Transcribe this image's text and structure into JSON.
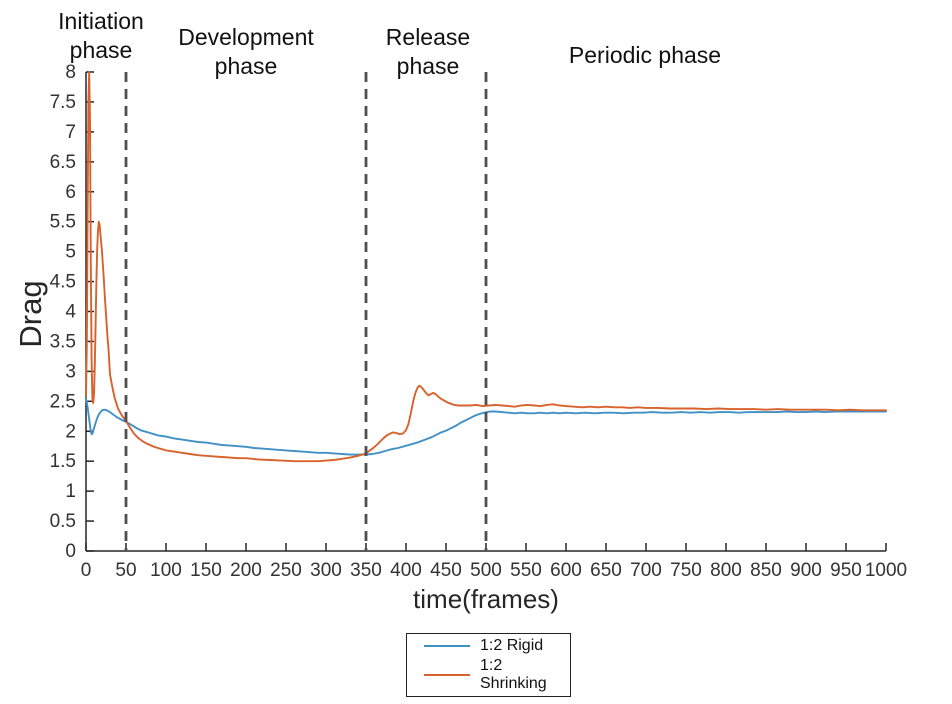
{
  "figure": {
    "annotations": [
      {
        "text": "Initiation phase"
      },
      {
        "text": "Development phase"
      },
      {
        "text": "Release phase"
      },
      {
        "text": "Periodic phase"
      }
    ]
  },
  "chart_data": {
    "type": "line",
    "title": "",
    "xlabel": "time(frames)",
    "ylabel": "Drag",
    "xlim": [
      0,
      1000
    ],
    "ylim": [
      0,
      8
    ],
    "x_ticks": [
      0,
      50,
      100,
      150,
      200,
      250,
      300,
      350,
      400,
      450,
      500,
      550,
      600,
      650,
      700,
      750,
      800,
      850,
      900,
      950,
      1000
    ],
    "y_ticks": [
      0,
      0.5,
      1,
      1.5,
      2,
      2.5,
      3,
      3.5,
      4,
      4.5,
      5,
      5.5,
      6,
      6.5,
      7,
      7.5,
      8
    ],
    "grid": false,
    "axis_color": "#262626",
    "tick_label_color": "#333333",
    "phase_boundaries_x": [
      50,
      350,
      500
    ],
    "boundary_color": "#4f4f4f",
    "legend": {
      "position": "below-plot",
      "entries": [
        {
          "label": "1:2 Rigid",
          "color": "#4191c7"
        },
        {
          "label": "1:2 Shrinking",
          "color": "#d8622d"
        }
      ]
    },
    "series": [
      {
        "name": "1:2 Rigid",
        "color": "#4191c7",
        "points": [
          [
            0,
            2.55
          ],
          [
            2,
            2.4
          ],
          [
            4,
            2.2
          ],
          [
            6,
            2.0
          ],
          [
            7,
            1.95
          ],
          [
            8,
            1.96
          ],
          [
            10,
            2.05
          ],
          [
            12,
            2.14
          ],
          [
            14,
            2.22
          ],
          [
            16,
            2.28
          ],
          [
            18,
            2.32
          ],
          [
            20,
            2.35
          ],
          [
            23,
            2.36
          ],
          [
            26,
            2.35
          ],
          [
            30,
            2.32
          ],
          [
            34,
            2.28
          ],
          [
            38,
            2.24
          ],
          [
            42,
            2.21
          ],
          [
            46,
            2.18
          ],
          [
            50,
            2.16
          ],
          [
            55,
            2.12
          ],
          [
            60,
            2.08
          ],
          [
            65,
            2.04
          ],
          [
            70,
            2.01
          ],
          [
            75,
            1.99
          ],
          [
            80,
            1.97
          ],
          [
            85,
            1.95
          ],
          [
            90,
            1.93
          ],
          [
            95,
            1.92
          ],
          [
            100,
            1.91
          ],
          [
            110,
            1.88
          ],
          [
            120,
            1.86
          ],
          [
            130,
            1.84
          ],
          [
            140,
            1.82
          ],
          [
            150,
            1.81
          ],
          [
            160,
            1.79
          ],
          [
            170,
            1.77
          ],
          [
            180,
            1.76
          ],
          [
            190,
            1.75
          ],
          [
            200,
            1.74
          ],
          [
            210,
            1.72
          ],
          [
            220,
            1.71
          ],
          [
            230,
            1.7
          ],
          [
            240,
            1.69
          ],
          [
            250,
            1.68
          ],
          [
            260,
            1.67
          ],
          [
            270,
            1.66
          ],
          [
            280,
            1.65
          ],
          [
            290,
            1.64
          ],
          [
            300,
            1.64
          ],
          [
            310,
            1.63
          ],
          [
            320,
            1.62
          ],
          [
            330,
            1.61
          ],
          [
            340,
            1.61
          ],
          [
            350,
            1.61
          ],
          [
            358,
            1.62
          ],
          [
            366,
            1.64
          ],
          [
            374,
            1.67
          ],
          [
            382,
            1.7
          ],
          [
            390,
            1.72
          ],
          [
            398,
            1.75
          ],
          [
            406,
            1.78
          ],
          [
            414,
            1.81
          ],
          [
            420,
            1.84
          ],
          [
            426,
            1.87
          ],
          [
            432,
            1.9
          ],
          [
            438,
            1.94
          ],
          [
            444,
            1.98
          ],
          [
            450,
            2.01
          ],
          [
            456,
            2.05
          ],
          [
            462,
            2.09
          ],
          [
            468,
            2.14
          ],
          [
            474,
            2.18
          ],
          [
            480,
            2.22
          ],
          [
            486,
            2.26
          ],
          [
            492,
            2.29
          ],
          [
            498,
            2.31
          ],
          [
            505,
            2.33
          ],
          [
            512,
            2.33
          ],
          [
            520,
            2.32
          ],
          [
            528,
            2.31
          ],
          [
            536,
            2.3
          ],
          [
            544,
            2.31
          ],
          [
            552,
            2.3
          ],
          [
            560,
            2.3
          ],
          [
            568,
            2.31
          ],
          [
            576,
            2.3
          ],
          [
            584,
            2.31
          ],
          [
            592,
            2.3
          ],
          [
            600,
            2.31
          ],
          [
            612,
            2.3
          ],
          [
            624,
            2.31
          ],
          [
            636,
            2.3
          ],
          [
            648,
            2.31
          ],
          [
            660,
            2.31
          ],
          [
            672,
            2.3
          ],
          [
            684,
            2.31
          ],
          [
            696,
            2.31
          ],
          [
            708,
            2.32
          ],
          [
            720,
            2.31
          ],
          [
            732,
            2.31
          ],
          [
            744,
            2.32
          ],
          [
            756,
            2.31
          ],
          [
            768,
            2.32
          ],
          [
            780,
            2.31
          ],
          [
            792,
            2.32
          ],
          [
            804,
            2.32
          ],
          [
            816,
            2.31
          ],
          [
            828,
            2.32
          ],
          [
            840,
            2.32
          ],
          [
            852,
            2.32
          ],
          [
            864,
            2.32
          ],
          [
            876,
            2.33
          ],
          [
            888,
            2.32
          ],
          [
            900,
            2.32
          ],
          [
            912,
            2.33
          ],
          [
            924,
            2.32
          ],
          [
            936,
            2.33
          ],
          [
            948,
            2.33
          ],
          [
            960,
            2.33
          ],
          [
            972,
            2.33
          ],
          [
            984,
            2.33
          ],
          [
            1000,
            2.33
          ]
        ]
      },
      {
        "name": "1:2 Shrinking",
        "color": "#d8622d",
        "points": [
          [
            0,
            2.6
          ],
          [
            1,
            3.4
          ],
          [
            2,
            5.6
          ],
          [
            3,
            7.5
          ],
          [
            4,
            8
          ],
          [
            5,
            7.2
          ],
          [
            6,
            4.8
          ],
          [
            7,
            3.2
          ],
          [
            8,
            2.55
          ],
          [
            9,
            2.47
          ],
          [
            10,
            2.62
          ],
          [
            11,
            3.1
          ],
          [
            12,
            3.8
          ],
          [
            13,
            4.5
          ],
          [
            14,
            5.05
          ],
          [
            15,
            5.35
          ],
          [
            16,
            5.5
          ],
          [
            17,
            5.45
          ],
          [
            18,
            5.3
          ],
          [
            20,
            5.0
          ],
          [
            22,
            4.6
          ],
          [
            24,
            4.15
          ],
          [
            26,
            3.75
          ],
          [
            27,
            3.55
          ],
          [
            28,
            3.4
          ],
          [
            30,
            2.95
          ],
          [
            33,
            2.73
          ],
          [
            36,
            2.55
          ],
          [
            40,
            2.38
          ],
          [
            45,
            2.26
          ],
          [
            50,
            2.17
          ],
          [
            55,
            2.06
          ],
          [
            60,
            1.96
          ],
          [
            65,
            1.89
          ],
          [
            70,
            1.84
          ],
          [
            75,
            1.8
          ],
          [
            80,
            1.77
          ],
          [
            85,
            1.74
          ],
          [
            90,
            1.72
          ],
          [
            95,
            1.7
          ],
          [
            100,
            1.68
          ],
          [
            110,
            1.66
          ],
          [
            120,
            1.64
          ],
          [
            130,
            1.62
          ],
          [
            140,
            1.6
          ],
          [
            150,
            1.59
          ],
          [
            160,
            1.58
          ],
          [
            170,
            1.57
          ],
          [
            180,
            1.56
          ],
          [
            190,
            1.55
          ],
          [
            200,
            1.55
          ],
          [
            215,
            1.53
          ],
          [
            230,
            1.52
          ],
          [
            245,
            1.51
          ],
          [
            260,
            1.5
          ],
          [
            275,
            1.5
          ],
          [
            290,
            1.5
          ],
          [
            300,
            1.51
          ],
          [
            310,
            1.52
          ],
          [
            320,
            1.54
          ],
          [
            330,
            1.56
          ],
          [
            340,
            1.59
          ],
          [
            350,
            1.63
          ],
          [
            355,
            1.68
          ],
          [
            360,
            1.73
          ],
          [
            365,
            1.79
          ],
          [
            370,
            1.86
          ],
          [
            375,
            1.92
          ],
          [
            380,
            1.96
          ],
          [
            384,
            1.98
          ],
          [
            388,
            1.97
          ],
          [
            392,
            1.95
          ],
          [
            396,
            1.96
          ],
          [
            400,
            2.02
          ],
          [
            403,
            2.12
          ],
          [
            406,
            2.3
          ],
          [
            409,
            2.5
          ],
          [
            412,
            2.65
          ],
          [
            415,
            2.74
          ],
          [
            417,
            2.76
          ],
          [
            419,
            2.74
          ],
          [
            422,
            2.69
          ],
          [
            425,
            2.64
          ],
          [
            428,
            2.6
          ],
          [
            431,
            2.62
          ],
          [
            434,
            2.64
          ],
          [
            437,
            2.62
          ],
          [
            440,
            2.58
          ],
          [
            444,
            2.54
          ],
          [
            448,
            2.51
          ],
          [
            452,
            2.48
          ],
          [
            456,
            2.46
          ],
          [
            460,
            2.44
          ],
          [
            466,
            2.43
          ],
          [
            472,
            2.43
          ],
          [
            480,
            2.43
          ],
          [
            488,
            2.44
          ],
          [
            496,
            2.42
          ],
          [
            504,
            2.43
          ],
          [
            512,
            2.44
          ],
          [
            520,
            2.43
          ],
          [
            528,
            2.42
          ],
          [
            536,
            2.41
          ],
          [
            544,
            2.43
          ],
          [
            552,
            2.44
          ],
          [
            560,
            2.43
          ],
          [
            568,
            2.42
          ],
          [
            576,
            2.44
          ],
          [
            584,
            2.45
          ],
          [
            592,
            2.43
          ],
          [
            600,
            2.42
          ],
          [
            610,
            2.41
          ],
          [
            620,
            2.4
          ],
          [
            630,
            2.41
          ],
          [
            640,
            2.4
          ],
          [
            650,
            2.41
          ],
          [
            660,
            2.4
          ],
          [
            670,
            2.4
          ],
          [
            680,
            2.39
          ],
          [
            690,
            2.4
          ],
          [
            700,
            2.39
          ],
          [
            715,
            2.39
          ],
          [
            730,
            2.38
          ],
          [
            745,
            2.38
          ],
          [
            760,
            2.38
          ],
          [
            775,
            2.37
          ],
          [
            790,
            2.38
          ],
          [
            805,
            2.37
          ],
          [
            820,
            2.37
          ],
          [
            835,
            2.37
          ],
          [
            850,
            2.36
          ],
          [
            865,
            2.37
          ],
          [
            880,
            2.36
          ],
          [
            895,
            2.36
          ],
          [
            910,
            2.36
          ],
          [
            925,
            2.36
          ],
          [
            940,
            2.35
          ],
          [
            955,
            2.36
          ],
          [
            970,
            2.35
          ],
          [
            985,
            2.35
          ],
          [
            1000,
            2.35
          ]
        ]
      }
    ]
  }
}
